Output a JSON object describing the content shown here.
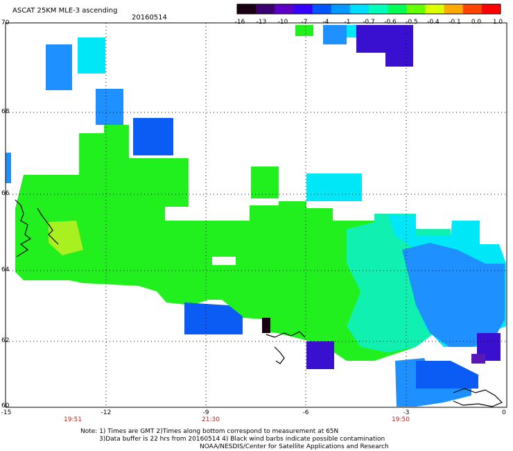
{
  "header": {
    "title": "ASCAT 25KM MLE-3 ascending",
    "date": "20160514"
  },
  "colorbar": {
    "labels": [
      "-16",
      "-13",
      "-10",
      "-7",
      "-4",
      "-1",
      "-0.7",
      "-0.6",
      "-0.5",
      "-0.4",
      "-0.1",
      "0.0",
      "1.0"
    ],
    "colors": [
      "#1a0013",
      "#3b0070",
      "#5d00c8",
      "#3300ff",
      "#0055ff",
      "#0099ff",
      "#00ddff",
      "#00ffbb",
      "#00ff55",
      "#66ff00",
      "#ddff00",
      "#ffaa00",
      "#ff4400",
      "#ff0000"
    ]
  },
  "axes": {
    "lat_labels": [
      "70",
      "68",
      "66",
      "64",
      "62",
      "60"
    ],
    "lon_labels": [
      "-15",
      "-12",
      "-9",
      "-6",
      "-3",
      "0"
    ],
    "time_labels": [
      "19:51",
      "21:30",
      "19:50"
    ]
  },
  "notes": {
    "line1": "Note: 1) Times are GMT 2)Times along bottom correspond to measurement at 65N",
    "line2": "3)Data buffer is 22 hrs from 20160514 4) Black wind barbs indicate possible contamination",
    "line3": "NOAA/NESDIS/Center for Satellite Applications and Research"
  }
}
